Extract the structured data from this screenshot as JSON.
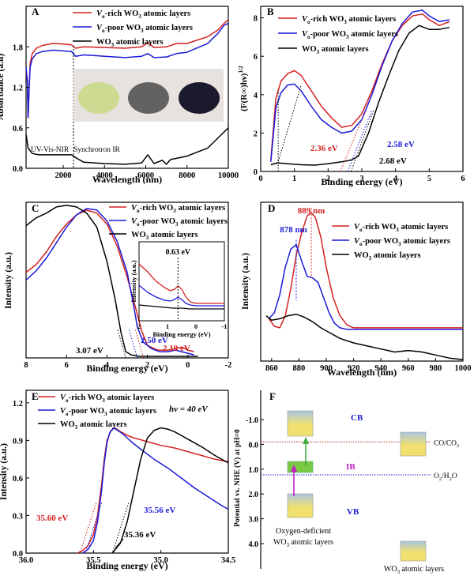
{
  "colors": {
    "rich": "#d42020",
    "poor": "#1a1ad8",
    "wo3": "#000000",
    "band_top": "#f0e070",
    "band_bottom": "#a9c6e3",
    "ib": "#7ac943",
    "arrow_up": "#3fae3f",
    "arrow_pink": "#c020c0",
    "cb_label": "#1a1ad8",
    "ib_label": "#c020c0"
  },
  "legend": {
    "rich_pre": "V",
    "rich_sub": "o",
    "rich_mid": "-rich WO",
    "rich_sub3": "3",
    "rich_post": " atomic layers",
    "poor_pre": "V",
    "poor_sub": "o",
    "poor_mid": "-poor WO",
    "poor_sub3": "3",
    "poor_post": " atomic layers",
    "wo3_pre": "WO",
    "wo3_sub3": "3",
    "wo3_post": " atomic layers"
  },
  "panels": {
    "A": {
      "letter": "A",
      "ylabel": "Absorbance (a.u)",
      "xlabel": "Wavelength (nm)",
      "note_left": "UV-Vis-NIR",
      "note_right": "Synchrotron IR",
      "xticks": [
        "2000",
        "4000",
        "6000",
        "8000",
        "10000"
      ],
      "yticks": [
        "0.0",
        "0.6",
        "1.2",
        "1.8"
      ]
    },
    "B": {
      "letter": "B",
      "ylabel_pre": "(F(R∞)hν)",
      "ylabel_sup": "1/2",
      "xlabel": "Binding energy (eV)",
      "xticks": [
        "0",
        "1",
        "2",
        "3",
        "4",
        "5",
        "6"
      ],
      "yticks": [
        "0",
        "2",
        "4",
        "6",
        "8"
      ],
      "ann_rich": "2.36 eV",
      "ann_poor": "2.58 eV",
      "ann_wo3": "2.68 eV"
    },
    "C": {
      "letter": "C",
      "ylabel": "Intensity (a.u.)",
      "xlabel": "Binding energy (eV)",
      "xticks": [
        "8",
        "6",
        "4",
        "2",
        "0",
        "-2"
      ],
      "ann_wo3": "3.07 eV",
      "ann_poor": "2.50 eV",
      "ann_rich": "2.19 eV",
      "inset": {
        "ylabel": "Intensity (a.u.)",
        "xlabel": "Binding energy (eV)",
        "xticks": [
          "2",
          "1",
          "0",
          "-1"
        ],
        "ann": "0.63 eV"
      }
    },
    "D": {
      "letter": "D",
      "ylabel": "Intensity (a.u.)",
      "xlabel": "Wavelength (nm)",
      "xticks": [
        "860",
        "880",
        "900",
        "920",
        "940",
        "960",
        "980",
        "1000"
      ],
      "ann_rich": "889 nm",
      "ann_poor": "878 nm"
    },
    "E": {
      "letter": "E",
      "ylabel": "Intensity (a.u.)",
      "xlabel": "Binding energy (eV)",
      "xticks": [
        "36.0",
        "35.5",
        "35.0",
        "34.5"
      ],
      "yticks": [
        "0.0",
        "0.3",
        "0.6",
        "0.9",
        "1.2"
      ],
      "photon": "hν = 40 eV",
      "ann_rich": "35.60 eV",
      "ann_poor": "35.56 eV",
      "ann_wo3": "35.36 eV"
    },
    "F": {
      "letter": "F",
      "ylabel": "Potential vs. NHE (V) at pH=0",
      "yticks": [
        "-1.0",
        "0.0",
        "1.0",
        "2.0",
        "3.0",
        "4.0"
      ],
      "cb": "CB",
      "ib": "IB",
      "vb": "VB",
      "co": "CO/CO",
      "co_sub": "2",
      "o2": "O",
      "o2_sub": "2",
      "o2_post": "/H",
      "o2_sub2": "2",
      "o2_post2": "O",
      "left_label1": "Oxygen-deficient",
      "left_label2_pre": "WO",
      "left_label2_sub": "3",
      "left_label2_post": " atomic layers",
      "right_label_pre": "WO",
      "right_label_sub": "3",
      "right_label_post": " atomic layers"
    }
  },
  "chart_data": [
    {
      "panel": "A",
      "type": "line",
      "xlabel": "Wavelength (nm)",
      "ylabel": "Absorbance (a.u)",
      "xlim": [
        200,
        10000
      ],
      "ylim": [
        0,
        2.4
      ],
      "series": [
        {
          "name": "Vo-rich WO3 atomic layers",
          "x": [
            200,
            260,
            300,
            350,
            400,
            500,
            700,
            1000,
            1500,
            2000,
            2400,
            2600,
            3000,
            4000,
            5000,
            5800,
            6100,
            6400,
            7000,
            7500,
            8000,
            9000,
            9500,
            9800,
            10000
          ],
          "y": [
            1.45,
            1.3,
            0.75,
            1.2,
            1.55,
            1.7,
            1.78,
            1.82,
            1.85,
            1.84,
            1.83,
            1.78,
            1.8,
            1.79,
            1.78,
            1.8,
            1.86,
            1.79,
            1.8,
            1.85,
            1.85,
            1.95,
            2.05,
            2.15,
            2.2
          ]
        },
        {
          "name": "Vo-poor WO3 atomic layers",
          "x": [
            200,
            260,
            300,
            350,
            400,
            500,
            700,
            1000,
            1500,
            2000,
            2400,
            2600,
            3000,
            4000,
            5000,
            5800,
            6100,
            6400,
            7000,
            7500,
            8000,
            9000,
            9500,
            9800,
            10000
          ],
          "y": [
            1.5,
            1.3,
            0.75,
            1.2,
            1.5,
            1.62,
            1.7,
            1.73,
            1.75,
            1.74,
            1.73,
            1.66,
            1.68,
            1.66,
            1.64,
            1.66,
            1.7,
            1.64,
            1.65,
            1.7,
            1.72,
            1.85,
            2.0,
            2.12,
            2.15
          ]
        },
        {
          "name": "WO3 atomic layers",
          "x": [
            200,
            300,
            500,
            800,
            1200,
            1600,
            2000,
            2400,
            2700,
            3000,
            4000,
            5000,
            5800,
            6100,
            6400,
            6800,
            7000,
            7200,
            8000,
            9000,
            9500,
            10000
          ],
          "y": [
            0.5,
            0.3,
            0.22,
            0.2,
            0.2,
            0.2,
            0.2,
            0.2,
            0.14,
            0.09,
            0.07,
            0.06,
            0.08,
            0.2,
            0.07,
            0.12,
            0.06,
            0.13,
            0.18,
            0.3,
            0.45,
            0.6
          ]
        }
      ]
    },
    {
      "panel": "B",
      "type": "line",
      "xlabel": "Binding energy (eV)",
      "ylabel": "(F(R∞)hν)^1/2",
      "xlim": [
        0,
        6
      ],
      "ylim": [
        0,
        8.6
      ],
      "series": [
        {
          "name": "Vo-rich WO3 atomic layers",
          "x": [
            0.3,
            0.45,
            0.6,
            0.8,
            1.0,
            1.2,
            1.5,
            1.8,
            2.1,
            2.4,
            2.7,
            3.0,
            3.3,
            3.6,
            3.9,
            4.2,
            4.5,
            4.8,
            5.0,
            5.3,
            5.6
          ],
          "y": [
            0.6,
            3.8,
            4.7,
            5.1,
            5.25,
            5.0,
            4.2,
            3.4,
            2.8,
            2.3,
            2.4,
            3.0,
            4.2,
            5.6,
            6.8,
            7.6,
            8.1,
            8.2,
            7.9,
            7.6,
            7.8
          ]
        },
        {
          "name": "Vo-poor WO3 atomic layers",
          "x": [
            0.3,
            0.45,
            0.6,
            0.8,
            1.0,
            1.2,
            1.5,
            1.8,
            2.1,
            2.4,
            2.7,
            3.0,
            3.3,
            3.6,
            3.9,
            4.2,
            4.5,
            4.8,
            5.0,
            5.3,
            5.6
          ],
          "y": [
            0.5,
            3.3,
            4.1,
            4.5,
            4.55,
            4.2,
            3.4,
            2.7,
            2.3,
            2.0,
            2.1,
            2.7,
            4.0,
            5.5,
            6.8,
            7.7,
            8.3,
            8.4,
            8.1,
            7.8,
            7.9
          ]
        },
        {
          "name": "WO3 atomic layers",
          "x": [
            0.3,
            0.5,
            0.8,
            1.2,
            1.6,
            2.0,
            2.4,
            2.7,
            2.9,
            3.2,
            3.5,
            3.8,
            4.1,
            4.4,
            4.7,
            5.0,
            5.3,
            5.6
          ],
          "y": [
            0.35,
            0.45,
            0.4,
            0.35,
            0.33,
            0.4,
            0.5,
            0.6,
            0.8,
            2.0,
            3.6,
            5.0,
            6.3,
            7.2,
            7.6,
            7.4,
            7.4,
            7.5
          ]
        }
      ]
    },
    {
      "panel": "C",
      "type": "line",
      "xlabel": "Binding energy (eV)",
      "ylabel": "Intensity (a.u.)",
      "xlim": [
        8,
        -2
      ],
      "series": [
        {
          "name": "Vo-rich WO3 atomic layers",
          "x": [
            8,
            7.5,
            7,
            6.5,
            6,
            5.5,
            5,
            4.5,
            4,
            3.5,
            3,
            2.6,
            2.3,
            2.0,
            1.5,
            1.0,
            0.6,
            0.3,
            0,
            -0.3
          ],
          "y": [
            0.55,
            0.6,
            0.68,
            0.78,
            0.86,
            0.92,
            0.95,
            0.93,
            0.86,
            0.72,
            0.52,
            0.33,
            0.18,
            0.08,
            0.05,
            0.05,
            0.06,
            0.07,
            0.05,
            0.04
          ]
        },
        {
          "name": "Vo-poor WO3 atomic layers",
          "x": [
            8,
            7.5,
            7,
            6.5,
            6,
            5.5,
            5,
            4.5,
            4,
            3.5,
            3,
            2.7,
            2.5,
            2.2,
            1.8,
            1.4,
            1.0,
            0.6,
            0.3,
            0,
            -0.3
          ],
          "y": [
            0.5,
            0.56,
            0.64,
            0.74,
            0.84,
            0.92,
            0.96,
            0.95,
            0.88,
            0.75,
            0.55,
            0.35,
            0.2,
            0.1,
            0.06,
            0.04,
            0.04,
            0.05,
            0.04,
            0.03,
            0.02
          ]
        },
        {
          "name": "WO3 atomic layers",
          "x": [
            8,
            7.5,
            7,
            6.5,
            6,
            5.5,
            5,
            4.5,
            4,
            3.6,
            3.3,
            3.07,
            2.8,
            2.4,
            2.0,
            1.5,
            1.0,
            0.5,
            0,
            -0.5
          ],
          "y": [
            0.85,
            0.9,
            0.93,
            0.97,
            0.98,
            0.97,
            0.93,
            0.84,
            0.62,
            0.38,
            0.16,
            0.04,
            0.02,
            0.01,
            0.01,
            0.01,
            0.01,
            0.01,
            0.01,
            0.01
          ]
        }
      ]
    },
    {
      "panel": "D",
      "type": "line",
      "xlabel": "Wavelength (nm)",
      "ylabel": "Intensity (a.u.)",
      "xlim": [
        855,
        1000
      ],
      "series": [
        {
          "name": "Vo-rich WO3 atomic layers",
          "x": [
            858,
            862,
            866,
            870,
            874,
            878,
            882,
            886,
            889,
            892,
            896,
            900,
            905,
            910,
            915,
            920,
            930,
            940,
            960,
            980,
            1000
          ],
          "y": [
            0.28,
            0.23,
            0.22,
            0.3,
            0.48,
            0.7,
            0.85,
            0.96,
            0.98,
            0.95,
            0.82,
            0.62,
            0.42,
            0.3,
            0.24,
            0.22,
            0.22,
            0.22,
            0.22,
            0.22,
            0.22
          ]
        },
        {
          "name": "Vo-poor WO3 atomic layers",
          "x": [
            858,
            862,
            866,
            870,
            874,
            878,
            882,
            886,
            890,
            894,
            898,
            902,
            906,
            910,
            915,
            920,
            930,
            940,
            960,
            980,
            1000
          ],
          "y": [
            0.28,
            0.32,
            0.44,
            0.62,
            0.74,
            0.77,
            0.66,
            0.56,
            0.55,
            0.52,
            0.42,
            0.32,
            0.25,
            0.22,
            0.21,
            0.21,
            0.21,
            0.21,
            0.21,
            0.21,
            0.21
          ]
        },
        {
          "name": "WO3 atomic layers",
          "x": [
            856,
            860,
            866,
            872,
            878,
            884,
            890,
            896,
            902,
            910,
            920,
            930,
            940,
            950,
            960,
            970,
            980,
            990,
            1000
          ],
          "y": [
            0.3,
            0.27,
            0.28,
            0.3,
            0.31,
            0.29,
            0.26,
            0.22,
            0.19,
            0.15,
            0.12,
            0.1,
            0.08,
            0.06,
            0.07,
            0.06,
            0.04,
            0.02,
            0.01
          ]
        }
      ]
    },
    {
      "panel": "E",
      "type": "line",
      "xlabel": "Binding energy (eV)",
      "ylabel": "Intensity (a.u.)",
      "xlim": [
        36.0,
        34.5
      ],
      "ylim": [
        0,
        1.3
      ],
      "series": [
        {
          "name": "Vo-rich WO3 atomic layers",
          "x": [
            35.62,
            35.58,
            35.54,
            35.5,
            35.47,
            35.44,
            35.42,
            35.4,
            35.37,
            35.34,
            35.3,
            35.25,
            35.2,
            35.1,
            35.0,
            34.9,
            34.8,
            34.7,
            34.6,
            34.5
          ],
          "y": [
            0,
            0.02,
            0.06,
            0.15,
            0.3,
            0.55,
            0.75,
            0.9,
            0.98,
            1.0,
            0.97,
            0.94,
            0.92,
            0.89,
            0.86,
            0.84,
            0.81,
            0.78,
            0.75,
            0.73
          ]
        },
        {
          "name": "Vo-poor WO3 atomic layers",
          "x": [
            35.58,
            35.54,
            35.5,
            35.47,
            35.44,
            35.42,
            35.4,
            35.38,
            35.35,
            35.32,
            35.28,
            35.22,
            35.15,
            35.05,
            34.95,
            34.85,
            34.75,
            34.65,
            34.55,
            34.5
          ],
          "y": [
            0,
            0.03,
            0.1,
            0.25,
            0.5,
            0.72,
            0.88,
            0.96,
            1.0,
            0.98,
            0.95,
            0.89,
            0.83,
            0.75,
            0.68,
            0.6,
            0.52,
            0.45,
            0.38,
            0.35
          ]
        },
        {
          "name": "WO3 atomic layers",
          "x": [
            35.36,
            35.3,
            35.25,
            35.2,
            35.15,
            35.1,
            35.05,
            35.0,
            34.95,
            34.9,
            34.85,
            34.8,
            34.7,
            34.6,
            34.5
          ],
          "y": [
            0,
            0.08,
            0.25,
            0.5,
            0.75,
            0.92,
            0.98,
            1.0,
            0.99,
            0.97,
            0.94,
            0.91,
            0.85,
            0.78,
            0.72
          ]
        }
      ]
    },
    {
      "panel": "F",
      "type": "diagram",
      "ylabel": "Potential vs. NHE (V) at pH=0",
      "ylim": [
        -1.5,
        4.6
      ],
      "levels": [
        {
          "label": "CO/CO2",
          "value": -0.1
        },
        {
          "label": "O2/H2O",
          "value": 1.23
        }
      ]
    }
  ]
}
